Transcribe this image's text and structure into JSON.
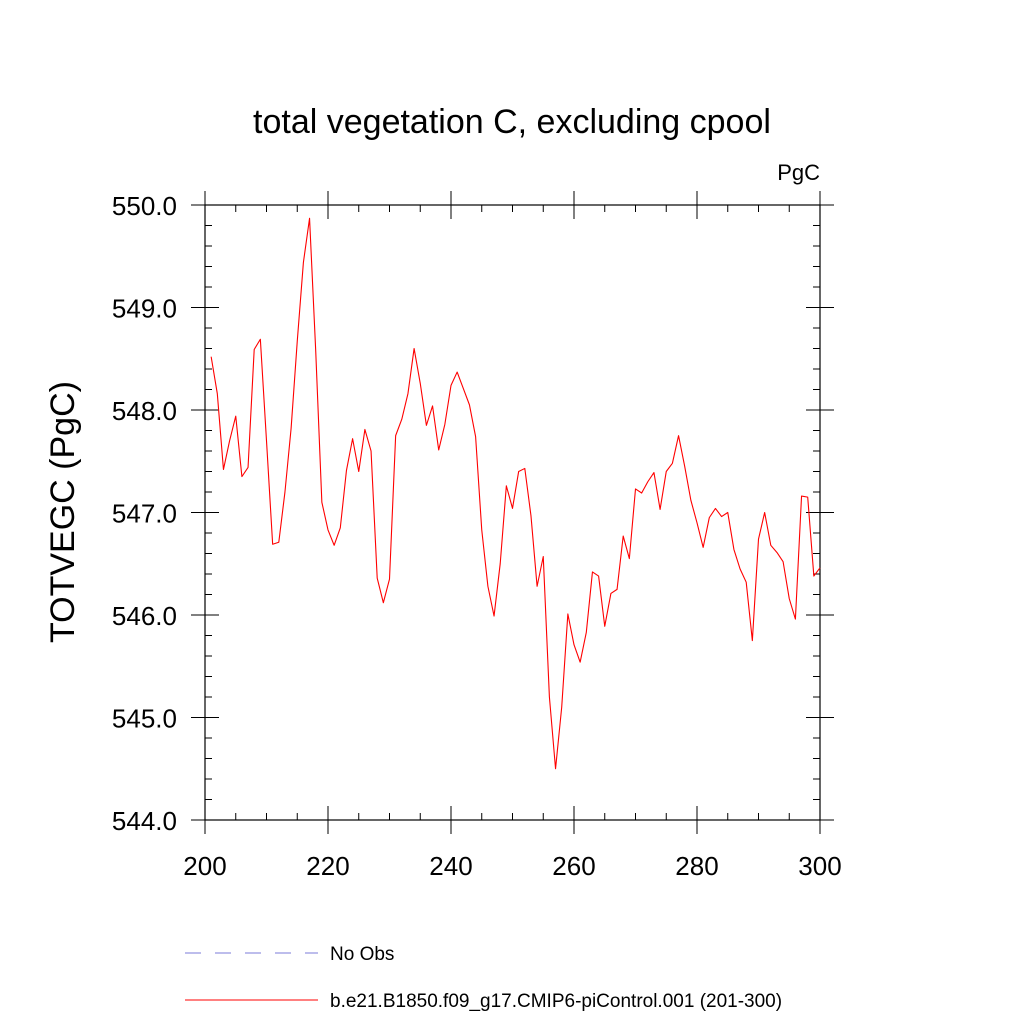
{
  "chart_data": {
    "type": "line",
    "title": "total vegetation C, excluding cpool",
    "units": "PgC",
    "xlabel": "",
    "ylabel": "TOTVEGC  (PgC)",
    "xlim": [
      200,
      300
    ],
    "ylim": [
      544.0,
      550.0
    ],
    "x_ticks": [
      200,
      220,
      240,
      260,
      280,
      300
    ],
    "x_tick_labels": [
      "200",
      "220",
      "240",
      "260",
      "280",
      "300"
    ],
    "y_ticks": [
      544.0,
      545.0,
      546.0,
      547.0,
      548.0,
      549.0,
      550.0
    ],
    "y_tick_labels": [
      "544.0",
      "545.0",
      "546.0",
      "547.0",
      "548.0",
      "549.0",
      "550.0"
    ],
    "grid": false,
    "legend_position": "bottom",
    "series": [
      {
        "name": "No Obs",
        "color": "#7b7bd9",
        "dash": "dashed",
        "x": [],
        "y": []
      },
      {
        "name": "b.e21.B1850.f09_g17.CMIP6-piControl.001 (201-300)",
        "color": "#ff0000",
        "dash": "solid",
        "x": [
          201,
          202,
          203,
          204,
          205,
          206,
          207,
          208,
          209,
          210,
          211,
          212,
          213,
          214,
          215,
          216,
          217,
          218,
          219,
          220,
          221,
          222,
          223,
          224,
          225,
          226,
          227,
          228,
          229,
          230,
          231,
          232,
          233,
          234,
          235,
          236,
          237,
          238,
          239,
          240,
          241,
          242,
          243,
          244,
          245,
          246,
          247,
          248,
          249,
          250,
          251,
          252,
          253,
          254,
          255,
          256,
          257,
          258,
          259,
          260,
          261,
          262,
          263,
          264,
          265,
          266,
          267,
          268,
          269,
          270,
          271,
          272,
          273,
          274,
          275,
          276,
          277,
          278,
          279,
          280,
          281,
          282,
          283,
          284,
          285,
          286,
          287,
          288,
          289,
          290,
          291,
          292,
          293,
          294,
          295,
          296,
          297,
          298,
          299,
          300
        ],
        "y": [
          548.52,
          548.16,
          547.42,
          547.7,
          547.94,
          547.35,
          547.44,
          548.59,
          548.69,
          547.7,
          546.69,
          546.71,
          547.2,
          547.82,
          548.67,
          549.44,
          549.87,
          548.58,
          547.1,
          546.83,
          546.68,
          546.85,
          547.41,
          547.72,
          547.4,
          547.81,
          547.6,
          546.36,
          546.12,
          546.35,
          547.75,
          547.91,
          548.16,
          548.6,
          548.26,
          547.85,
          548.04,
          547.61,
          547.86,
          548.24,
          548.37,
          548.21,
          548.05,
          547.74,
          546.83,
          546.28,
          545.99,
          546.5,
          547.26,
          547.04,
          547.4,
          547.43,
          546.97,
          546.28,
          546.57,
          545.2,
          544.5,
          545.1,
          546.01,
          545.71,
          545.54,
          545.83,
          546.42,
          546.38,
          545.89,
          546.21,
          546.25,
          546.77,
          546.55,
          547.23,
          547.19,
          547.3,
          547.39,
          547.03,
          547.4,
          547.48,
          547.75,
          547.45,
          547.12,
          546.9,
          546.66,
          546.95,
          547.04,
          546.96,
          547.0,
          546.64,
          546.45,
          546.32,
          545.75,
          546.74,
          547.0,
          546.68,
          546.61,
          546.52,
          546.16,
          545.96,
          547.16,
          547.15,
          546.38,
          546.46
        ]
      }
    ]
  }
}
